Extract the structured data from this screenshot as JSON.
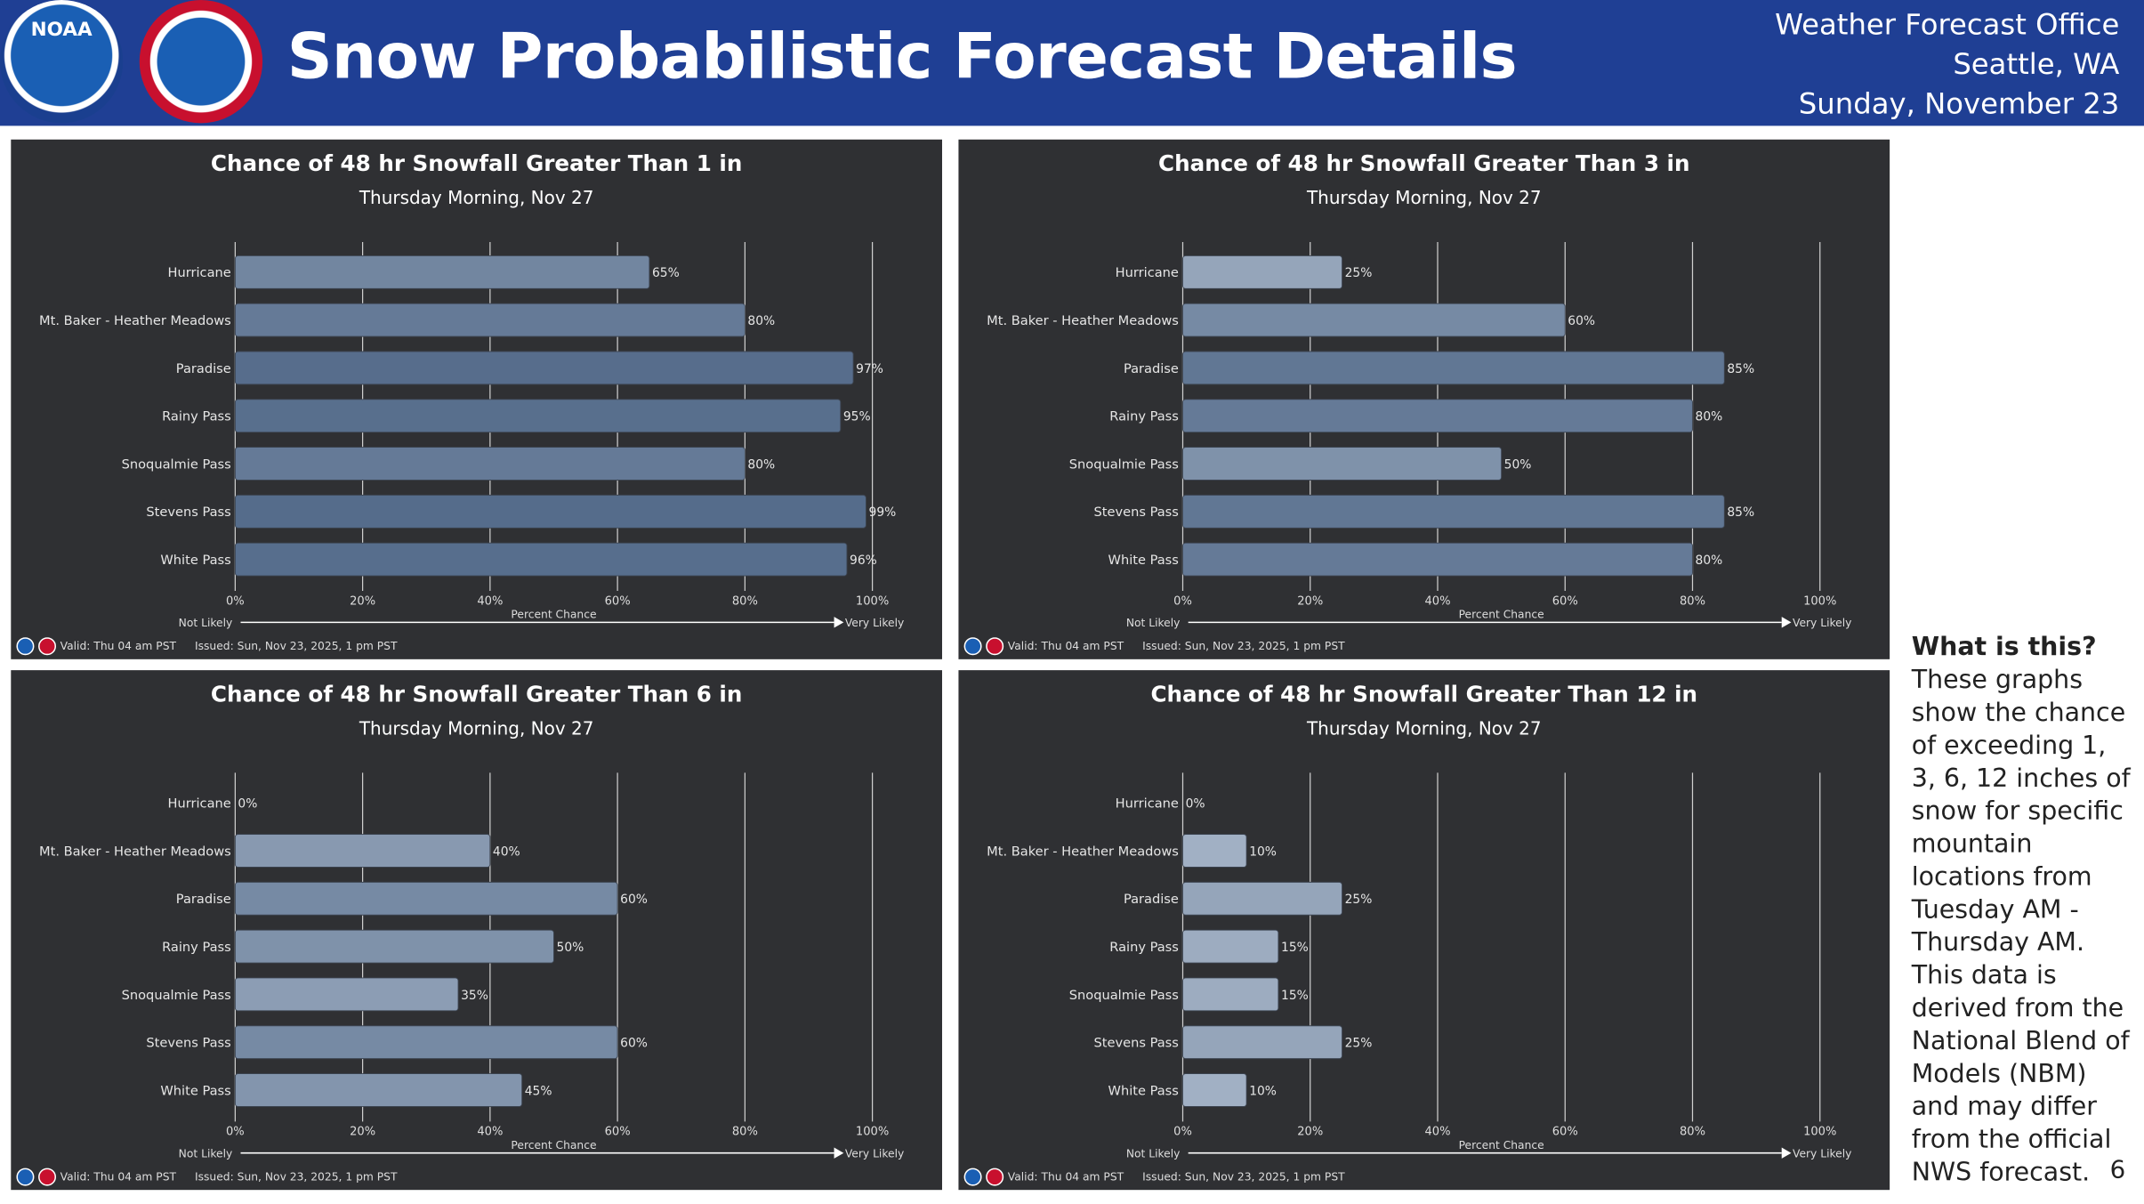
{
  "header": {
    "title": "Snow Probabilistic Forecast Details",
    "office_lines": [
      "Weather Forecast Office",
      "Seattle, WA",
      "Sunday, November 23"
    ],
    "logos": [
      "NOAA",
      "NATIONAL WEATHER SERVICE"
    ]
  },
  "sidebar": {
    "heading": "What is this?",
    "body": "These graphs show the chance of exceeding 1, 3, 6, 12 inches of snow for specific mountain locations from Tuesday AM - Thursday AM. This data is derived from the National Blend of Models (NBM) and may differ from the official NWS forecast.",
    "page_number": "6"
  },
  "footer": {
    "valid": "Valid: Thu 04 am PST",
    "issued": "Issued: Sun, Nov 23, 2025, 1 pm PST"
  },
  "colors": {
    "header_bg": "#1f3f94",
    "panel_bg": "#2f3033",
    "bar_light": "#aab8ca",
    "bar_dark": "#546b8a"
  },
  "chart_data": [
    {
      "type": "bar",
      "orientation": "horizontal",
      "title": "Chance of 48 hr Snowfall Greater Than 1 in",
      "subtitle": "Thursday Morning, Nov 27",
      "xlabel": "Percent Chance",
      "x_left_label": "Not Likely",
      "x_right_label": "Very Likely",
      "xlim": [
        0,
        100
      ],
      "ticks": [
        "0%",
        "20%",
        "40%",
        "60%",
        "80%",
        "100%"
      ],
      "grid": true,
      "categories": [
        "Hurricane",
        "Mt. Baker - Heather Meadows",
        "Paradise",
        "Rainy Pass",
        "Snoqualmie Pass",
        "Stevens Pass",
        "White Pass"
      ],
      "values": [
        65,
        80,
        97,
        95,
        80,
        99,
        96
      ]
    },
    {
      "type": "bar",
      "orientation": "horizontal",
      "title": "Chance of 48 hr Snowfall Greater Than 3 in",
      "subtitle": "Thursday Morning, Nov 27",
      "xlabel": "Percent Chance",
      "x_left_label": "Not Likely",
      "x_right_label": "Very Likely",
      "xlim": [
        0,
        100
      ],
      "ticks": [
        "0%",
        "20%",
        "40%",
        "60%",
        "80%",
        "100%"
      ],
      "grid": true,
      "categories": [
        "Hurricane",
        "Mt. Baker - Heather Meadows",
        "Paradise",
        "Rainy Pass",
        "Snoqualmie Pass",
        "Stevens Pass",
        "White Pass"
      ],
      "values": [
        25,
        60,
        85,
        80,
        50,
        85,
        80
      ]
    },
    {
      "type": "bar",
      "orientation": "horizontal",
      "title": "Chance of 48 hr Snowfall Greater Than 6 in",
      "subtitle": "Thursday Morning, Nov 27",
      "xlabel": "Percent Chance",
      "x_left_label": "Not Likely",
      "x_right_label": "Very Likely",
      "xlim": [
        0,
        100
      ],
      "ticks": [
        "0%",
        "20%",
        "40%",
        "60%",
        "80%",
        "100%"
      ],
      "grid": true,
      "categories": [
        "Hurricane",
        "Mt. Baker - Heather Meadows",
        "Paradise",
        "Rainy Pass",
        "Snoqualmie Pass",
        "Stevens Pass",
        "White Pass"
      ],
      "values": [
        0,
        40,
        60,
        50,
        35,
        60,
        45
      ]
    },
    {
      "type": "bar",
      "orientation": "horizontal",
      "title": "Chance of 48 hr Snowfall Greater Than 12 in",
      "subtitle": "Thursday Morning, Nov 27",
      "xlabel": "Percent Chance",
      "x_left_label": "Not Likely",
      "x_right_label": "Very Likely",
      "xlim": [
        0,
        100
      ],
      "ticks": [
        "0%",
        "20%",
        "40%",
        "60%",
        "80%",
        "100%"
      ],
      "grid": true,
      "categories": [
        "Hurricane",
        "Mt. Baker - Heather Meadows",
        "Paradise",
        "Rainy Pass",
        "Snoqualmie Pass",
        "Stevens Pass",
        "White Pass"
      ],
      "values": [
        0,
        10,
        25,
        15,
        15,
        25,
        10
      ]
    }
  ]
}
